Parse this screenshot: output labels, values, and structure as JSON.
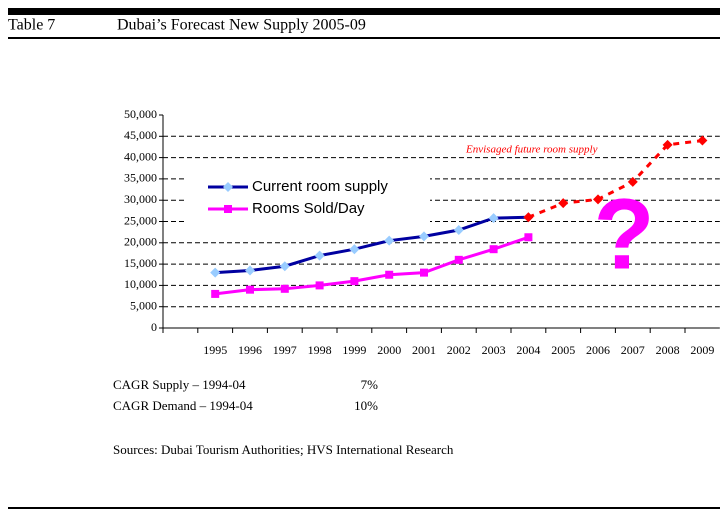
{
  "header": {
    "table": "Table 7",
    "title": "Dubai’s Forecast New Supply 2005-09"
  },
  "chart_data": {
    "type": "line",
    "categories": [
      null,
      "1995",
      "1996",
      "1997",
      "1998",
      "1999",
      "2000",
      "2001",
      "2002",
      "2003",
      "2004",
      "2005",
      "2006",
      "2007",
      "2008",
      "2009"
    ],
    "series": [
      {
        "name": "Current room supply",
        "color": "#0000a0",
        "marker_color": "#99ccff",
        "marker": "diamond",
        "values": [
          null,
          13000,
          13500,
          14500,
          17000,
          18500,
          20500,
          21500,
          23000,
          25800,
          26000,
          null,
          null,
          null,
          null,
          null
        ]
      },
      {
        "name": "Rooms Sold/Day",
        "color": "#ff00ff",
        "marker_color": "#ff00ff",
        "marker": "square",
        "values": [
          null,
          8000,
          9000,
          9200,
          10000,
          11000,
          12500,
          13000,
          16000,
          18500,
          21300,
          null,
          null,
          null,
          null,
          null
        ]
      },
      {
        "name": "Envisaged future room supply",
        "color": "#ff0000",
        "marker_color": "#ff0000",
        "marker": "diamond",
        "dashed": true,
        "in_legend": false,
        "values": [
          null,
          null,
          null,
          null,
          null,
          null,
          null,
          null,
          null,
          null,
          26000,
          29300,
          30200,
          34300,
          43000,
          44000
        ]
      }
    ],
    "annotation": "?",
    "ylim": [
      0,
      50000
    ],
    "yticks": [
      0,
      {
        "value": 5000,
        "label": "5,000"
      },
      {
        "value": 10000,
        "label": "10,000"
      },
      {
        "value": 15000,
        "label": "15,000"
      },
      {
        "value": 20000,
        "label": "20,000"
      },
      {
        "value": 25000,
        "label": "25,000"
      },
      {
        "value": 30000,
        "label": "30,000"
      },
      {
        "value": 35000,
        "label": "35,000"
      },
      {
        "value": 40000,
        "label": "40,000"
      },
      {
        "value": 45000,
        "label": "45,000"
      },
      {
        "value": 50000,
        "label": "50,000"
      }
    ],
    "grid": true
  },
  "notes": [
    {
      "label": "CAGR Supply – 1994-04",
      "value": "7%"
    },
    {
      "label": "CAGR Demand – 1994-04",
      "value": "10%"
    }
  ],
  "source": "Sources: Dubai Tourism Authorities; HVS International Research"
}
